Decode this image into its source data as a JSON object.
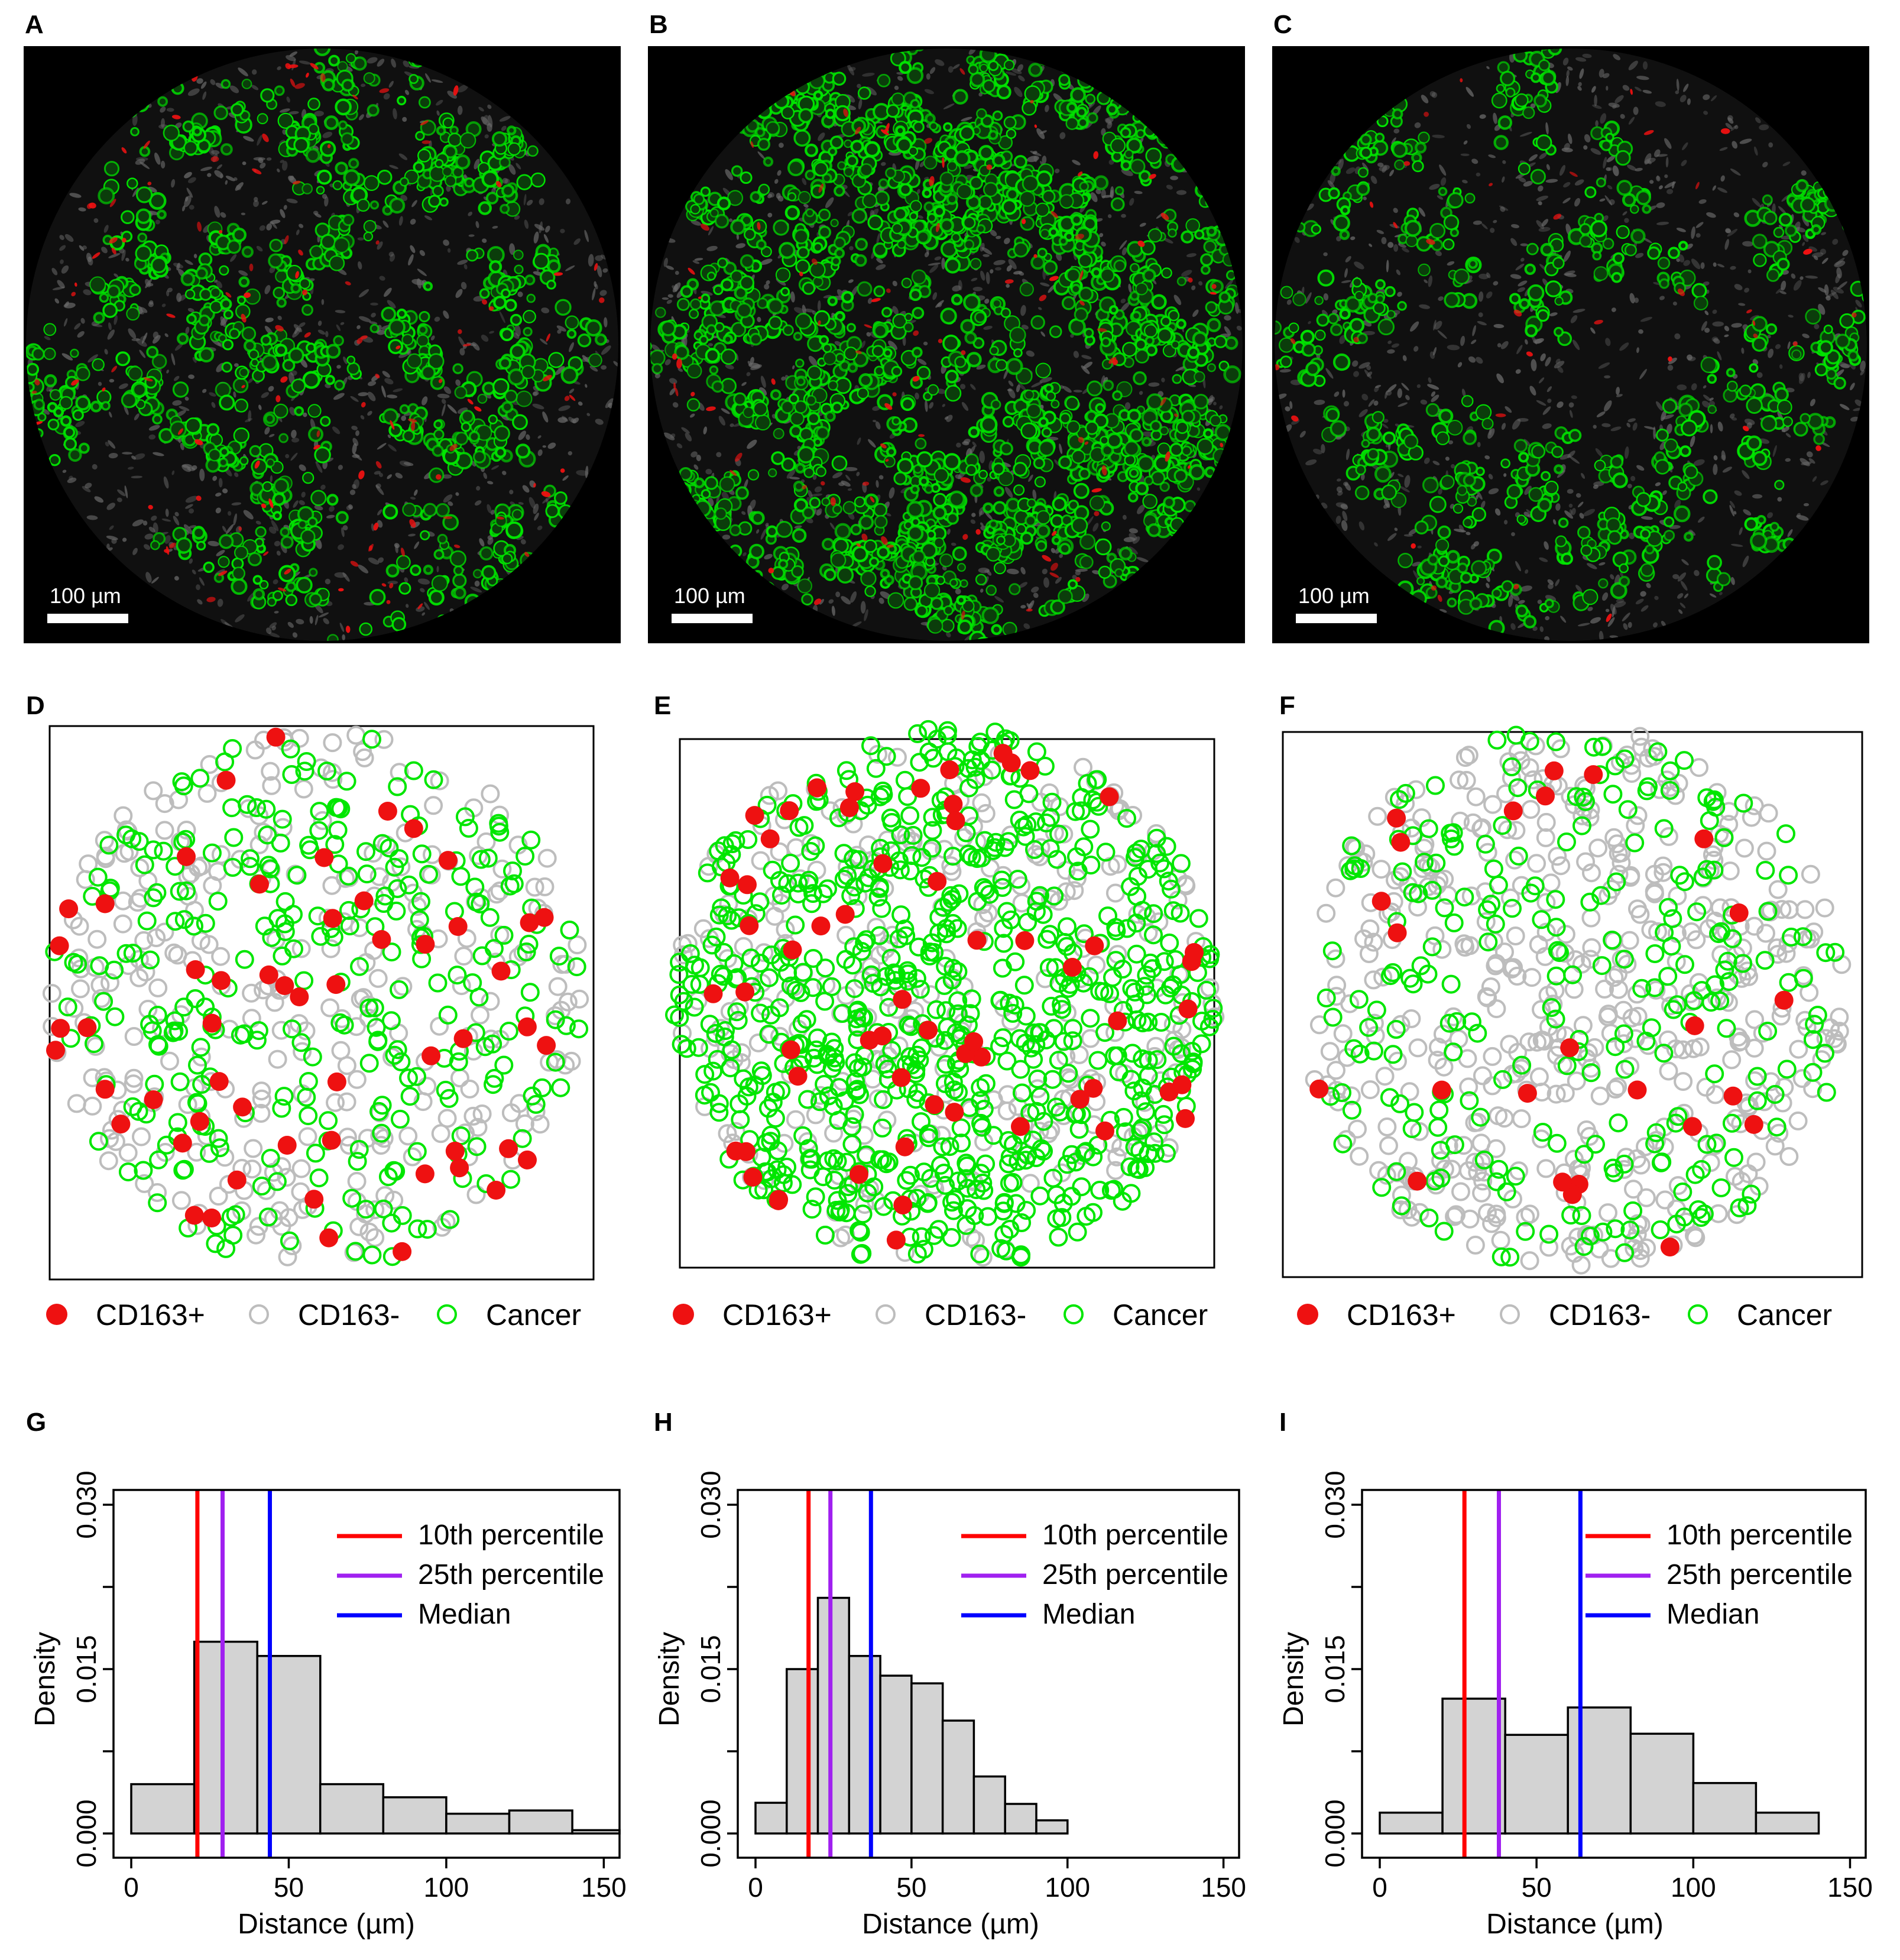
{
  "colors": {
    "cancer": "#00e600",
    "cd163_pos": "#ee1111",
    "cd163_neg": "#bdbdbd",
    "tissue_bg": "#000000",
    "hist_fill": "#d3d3d3",
    "p10": "#ff0000",
    "p25": "#a020f0",
    "median": "#0000ff"
  },
  "micrographs": [
    {
      "letter": "A",
      "scale_label": "100 µm",
      "green_density": 0.33,
      "red_density": 0.05
    },
    {
      "letter": "B",
      "scale_label": "100 µm",
      "green_density": 0.6,
      "red_density": 0.04
    },
    {
      "letter": "C",
      "scale_label": "100 µm",
      "green_density": 0.24,
      "red_density": 0.015
    }
  ],
  "point_maps": [
    {
      "letter": "D",
      "n_pos": 55,
      "n_neg": 300,
      "n_cancer": 300,
      "legend": [
        "CD163+",
        "CD163-",
        "Cancer"
      ]
    },
    {
      "letter": "E",
      "n_pos": 60,
      "n_neg": 280,
      "n_cancer": 760,
      "legend": [
        "CD163+",
        "CD163-",
        "Cancer"
      ]
    },
    {
      "letter": "F",
      "n_pos": 25,
      "n_neg": 470,
      "n_cancer": 250,
      "legend": [
        "CD163+",
        "CD163-",
        "Cancer"
      ]
    }
  ],
  "chart_data": [
    {
      "type": "bar",
      "panel": "G",
      "xlabel": "Distance (µm)",
      "ylabel": "Density",
      "xlim": [
        0,
        155
      ],
      "ylim": [
        0,
        0.03
      ],
      "xticks": [
        "0",
        "50",
        "100",
        "150"
      ],
      "yticks": [
        "0.000",
        "0.015",
        "0.030"
      ],
      "bin_edges": [
        0,
        20,
        40,
        60,
        80,
        100,
        120,
        140,
        160
      ],
      "values": [
        0.0045,
        0.0175,
        0.0162,
        0.0045,
        0.0033,
        0.0018,
        0.0021,
        0.0003
      ],
      "lines": [
        {
          "name": "10th percentile",
          "x": 21
        },
        {
          "name": "25th percentile",
          "x": 29
        },
        {
          "name": "Median",
          "x": 44
        }
      ]
    },
    {
      "type": "bar",
      "panel": "H",
      "xlabel": "Distance (µm)",
      "ylabel": "Density",
      "xlim": [
        0,
        155
      ],
      "ylim": [
        0,
        0.03
      ],
      "xticks": [
        "0",
        "50",
        "100",
        "150"
      ],
      "yticks": [
        "0.000",
        "0.015",
        "0.030"
      ],
      "bin_edges": [
        0,
        10,
        20,
        30,
        40,
        50,
        60,
        70,
        80,
        90,
        100
      ],
      "values": [
        0.0028,
        0.015,
        0.0215,
        0.0162,
        0.0144,
        0.0137,
        0.0103,
        0.0052,
        0.0027,
        0.0012
      ],
      "lines": [
        {
          "name": "10th percentile",
          "x": 17
        },
        {
          "name": "25th percentile",
          "x": 24
        },
        {
          "name": "Median",
          "x": 37
        }
      ]
    },
    {
      "type": "bar",
      "panel": "I",
      "xlabel": "Distance (µm)",
      "ylabel": "Density",
      "xlim": [
        0,
        155
      ],
      "ylim": [
        0,
        0.03
      ],
      "xticks": [
        "0",
        "50",
        "100",
        "150"
      ],
      "yticks": [
        "0.000",
        "0.015",
        "0.030"
      ],
      "bin_edges": [
        0,
        20,
        40,
        60,
        80,
        100,
        120,
        140
      ],
      "values": [
        0.0019,
        0.0123,
        0.009,
        0.0115,
        0.0091,
        0.0046,
        0.0019
      ],
      "lines": [
        {
          "name": "10th percentile",
          "x": 27
        },
        {
          "name": "25th percentile",
          "x": 38
        },
        {
          "name": "Median",
          "x": 64
        }
      ]
    }
  ]
}
